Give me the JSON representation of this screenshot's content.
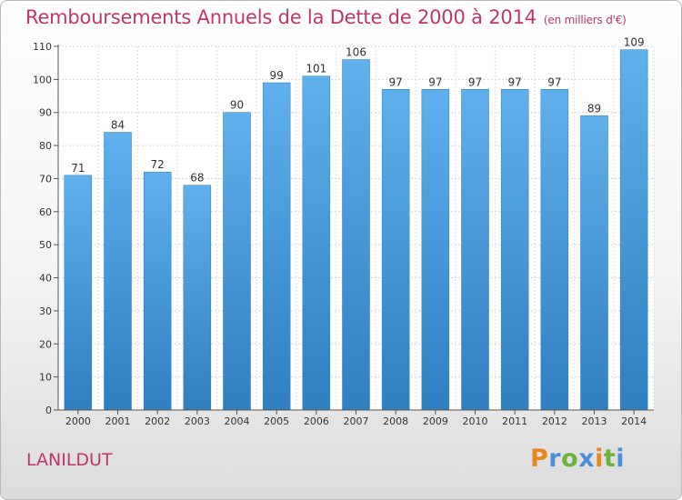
{
  "title": "Remboursements Annuels de la Dette de 2000 à 2014",
  "unit": "(en milliers d'€)",
  "city": "LANILDUT",
  "brand": {
    "letters": [
      "P",
      "r",
      "o",
      "x",
      "i",
      "t",
      "i"
    ],
    "colors": [
      "#e8871f",
      "#4a90d9",
      "#6cb33e",
      "#4a90d9",
      "#e8871f",
      "#6cb33e",
      "#4a90d9"
    ]
  },
  "colors": {
    "bar": "#3d8fd4",
    "bar_light": "#5fb0ec",
    "text": "#333333",
    "accent": "#c0356c"
  },
  "chart_data": {
    "type": "bar",
    "title": "Remboursements Annuels de la Dette de 2000 à 2014",
    "xlabel": "",
    "ylabel": "(en milliers d'€)",
    "categories": [
      "2000",
      "2001",
      "2002",
      "2003",
      "2004",
      "2005",
      "2006",
      "2007",
      "2008",
      "2009",
      "2010",
      "2011",
      "2012",
      "2013",
      "2014"
    ],
    "values": [
      71,
      84,
      72,
      68,
      90,
      99,
      101,
      106,
      97,
      97,
      97,
      97,
      97,
      89,
      109
    ],
    "ylim": [
      0,
      110
    ],
    "yticks": [
      0,
      10,
      20,
      30,
      40,
      50,
      60,
      70,
      80,
      90,
      100,
      110
    ],
    "grid": true
  }
}
